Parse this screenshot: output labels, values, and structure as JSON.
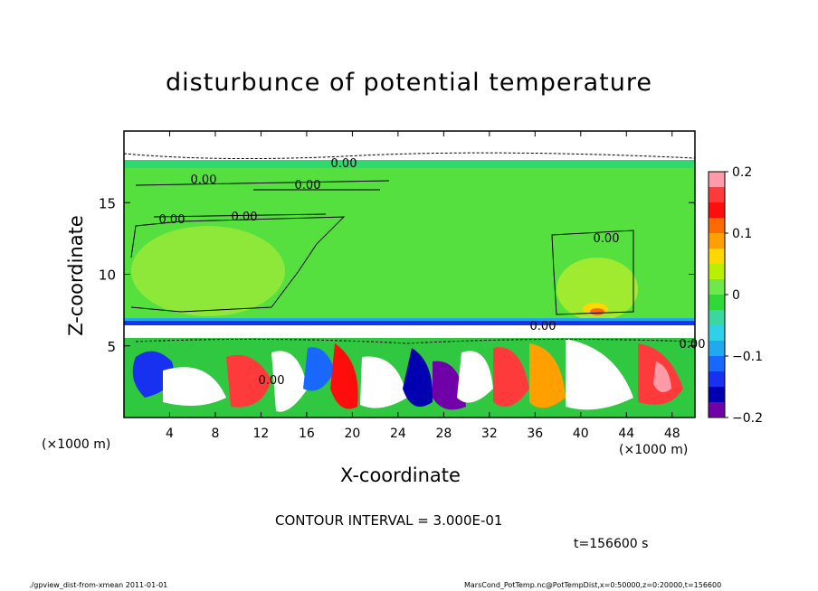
{
  "chart_data": {
    "type": "heatmap",
    "title": "disturbunce of potential temperature",
    "xlabel": "X-coordinate",
    "ylabel": "Z-coordinate",
    "x_unit_label": "(×1000 m)",
    "xlim": [
      0,
      50
    ],
    "ylim": [
      0,
      20
    ],
    "x_ticks": [
      4,
      8,
      12,
      16,
      20,
      24,
      28,
      32,
      36,
      40,
      44,
      48
    ],
    "y_ticks": [
      5,
      10,
      15
    ],
    "colorbar": {
      "range": [
        -0.2,
        0.2
      ],
      "ticks": [
        0.2,
        0.1,
        0,
        -0.1,
        -0.2
      ],
      "tick_labels": [
        "0.2",
        "0.1",
        "0",
        "−0.1",
        "−0.2"
      ],
      "colors": [
        "#ff9aa8",
        "#ff3a3a",
        "#ff0d0d",
        "#ff6a00",
        "#ffa000",
        "#ffd800",
        "#b8f000",
        "#6ee84a",
        "#30d838",
        "#3ad8a0",
        "#30d0e8",
        "#20a8f0",
        "#1868ff",
        "#1830f0",
        "#0000b0",
        "#7000a8"
      ]
    },
    "contour_labels": [
      "0.00",
      "0.00",
      "0.00",
      "0.00",
      "0.00",
      "0.00",
      "0.00",
      "0.00",
      "0.00"
    ],
    "contour_interval_text": "CONTOUR INTERVAL = 3.000E-01",
    "time_text": "t=156600 s",
    "footer_left": "./gpview_dist-from-xmean   2011-01-01",
    "footer_right": "MarsCond_PotTemp.nc@PotTempDist,x=0:50000,z=0:20000,t=156600"
  }
}
